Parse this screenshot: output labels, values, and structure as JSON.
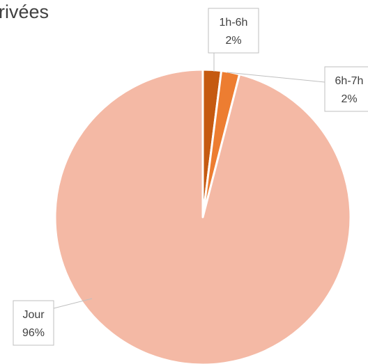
{
  "chart_data": {
    "type": "pie",
    "title": "rivées",
    "categories": [
      "1h-6h",
      "6h-7h",
      "Jour"
    ],
    "values": [
      2,
      2,
      96
    ],
    "labels": [
      "2%",
      "2%",
      "96%"
    ],
    "colors": [
      "#c55a11",
      "#ed7d31",
      "#f4b9a5"
    ],
    "start": "12 o'clock, clockwise",
    "legend": "none (category labels shown in callouts)"
  }
}
